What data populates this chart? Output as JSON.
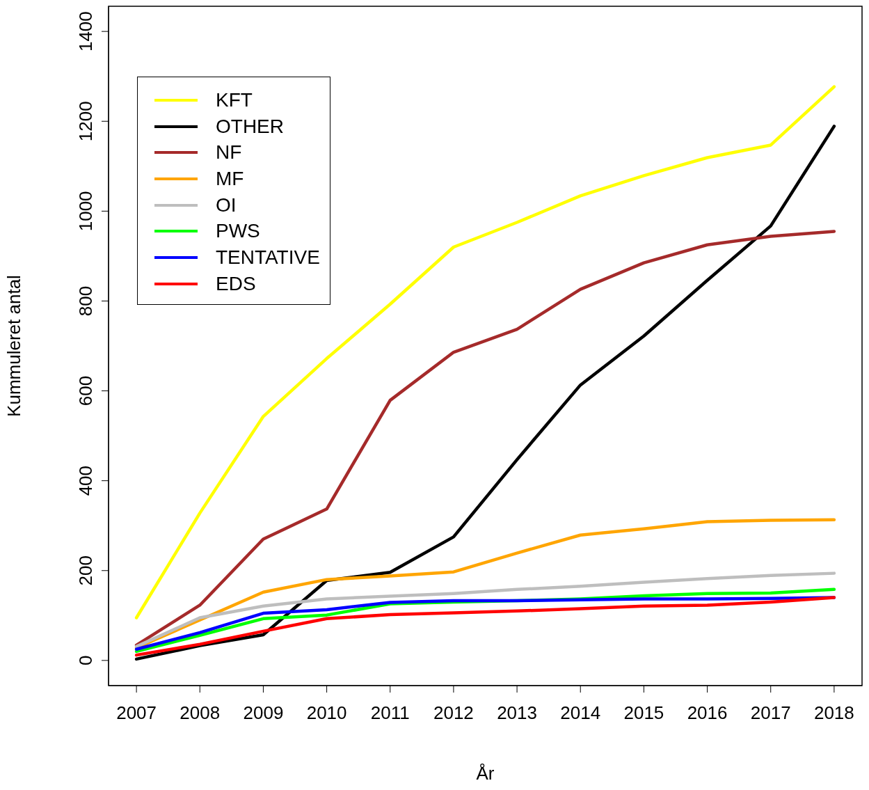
{
  "chart_data": {
    "type": "line",
    "xlabel": "År",
    "ylabel": "Kummuleret antal",
    "x": [
      2007,
      2008,
      2009,
      2010,
      2011,
      2012,
      2013,
      2014,
      2015,
      2016,
      2017,
      2018
    ],
    "xlim": [
      2006.56,
      2018.44
    ],
    "xticks": [
      2007,
      2008,
      2009,
      2010,
      2011,
      2012,
      2013,
      2014,
      2015,
      2016,
      2017,
      2018
    ],
    "ylim": [
      -56,
      1456
    ],
    "yticks": [
      0,
      200,
      400,
      600,
      800,
      1000,
      1200,
      1400
    ],
    "grid": false,
    "legend": "top left",
    "marker": "none",
    "line_style": "solid",
    "series": [
      {
        "name": "KFT",
        "color": "#ffff00",
        "values": [
          95,
          328,
          543,
          672,
          793,
          920,
          975,
          1034,
          1079,
          1119,
          1147,
          1277
        ]
      },
      {
        "name": "OTHER",
        "color": "#000000",
        "values": [
          3,
          33,
          57,
          178,
          196,
          275,
          447,
          613,
          722,
          846,
          967,
          1189
        ]
      },
      {
        "name": "NF",
        "color": "#a52a2a",
        "values": [
          34,
          123,
          270,
          337,
          579,
          686,
          737,
          826,
          885,
          925,
          944,
          955
        ]
      },
      {
        "name": "MF",
        "color": "#ffa500",
        "values": [
          28,
          90,
          152,
          180,
          188,
          197,
          239,
          279,
          293,
          309,
          312,
          313
        ]
      },
      {
        "name": "OI",
        "color": "#bebebe",
        "values": [
          31,
          95,
          121,
          137,
          143,
          149,
          158,
          165,
          174,
          182,
          189,
          194
        ]
      },
      {
        "name": "PWS",
        "color": "#00ff00",
        "values": [
          20,
          56,
          93,
          101,
          126,
          130,
          133,
          137,
          144,
          149,
          150,
          158
        ]
      },
      {
        "name": "TENTATIVE",
        "color": "#0000ff",
        "values": [
          25,
          62,
          105,
          113,
          129,
          133,
          133,
          135,
          137,
          137,
          138,
          140
        ]
      },
      {
        "name": "EDS",
        "color": "#ff0000",
        "values": [
          12,
          36,
          65,
          93,
          102,
          106,
          110,
          115,
          121,
          123,
          130,
          140
        ]
      }
    ]
  }
}
